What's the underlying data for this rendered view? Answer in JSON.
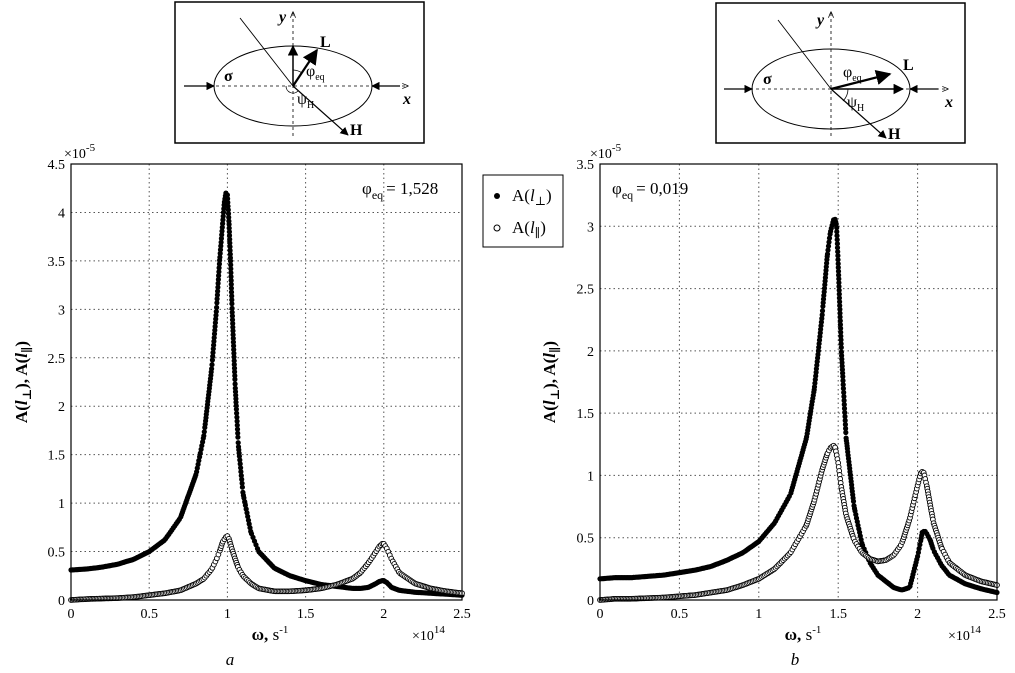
{
  "chart_data": [
    {
      "type": "scatter",
      "panel_label": "a",
      "annotation": "φeq = 1,528",
      "annotation_parts": {
        "phi": "φ",
        "sub": "eq",
        "value": "= 1,528"
      },
      "xlabel": "ω, s-1",
      "ylabel": "A(l⊥), A(l∥)",
      "x_multiplier": "×10^14",
      "y_multiplier": "×10^-5",
      "xlim": [
        0,
        2.5
      ],
      "ylim": [
        0,
        4.5
      ],
      "x_ticks": [
        "0",
        "0.5",
        "1",
        "1.5",
        "2",
        "2.5"
      ],
      "y_ticks": [
        "0",
        "0.5",
        "1",
        "1.5",
        "2",
        "2.5",
        "3",
        "3.5",
        "4",
        "4.5"
      ],
      "grid": true,
      "series": [
        {
          "name": "A(l⊥)",
          "marker": "filled-circle",
          "x": [
            0,
            0.1,
            0.2,
            0.3,
            0.4,
            0.5,
            0.6,
            0.7,
            0.8,
            0.85,
            0.9,
            0.93,
            0.95,
            0.97,
            0.98,
            0.99,
            1.0,
            1.01,
            1.02,
            1.03,
            1.05,
            1.07,
            1.1,
            1.15,
            1.2,
            1.3,
            1.4,
            1.5,
            1.6,
            1.7,
            1.8,
            1.85,
            1.9,
            1.95,
            1.97,
            1.99,
            2.0,
            2.02,
            2.05,
            2.1,
            2.2,
            2.3,
            2.4,
            2.5
          ],
          "y": [
            0.31,
            0.32,
            0.34,
            0.37,
            0.42,
            0.5,
            0.62,
            0.85,
            1.3,
            1.7,
            2.4,
            3.0,
            3.5,
            3.9,
            4.1,
            4.2,
            4.18,
            3.9,
            3.5,
            3.0,
            2.2,
            1.6,
            1.1,
            0.7,
            0.5,
            0.33,
            0.25,
            0.2,
            0.16,
            0.14,
            0.12,
            0.12,
            0.13,
            0.17,
            0.19,
            0.2,
            0.2,
            0.18,
            0.13,
            0.1,
            0.08,
            0.07,
            0.06,
            0.05
          ]
        },
        {
          "name": "A(l∥)",
          "marker": "open-circle",
          "x": [
            0,
            0.1,
            0.2,
            0.3,
            0.4,
            0.5,
            0.6,
            0.7,
            0.8,
            0.85,
            0.9,
            0.93,
            0.95,
            0.97,
            0.99,
            1.0,
            1.01,
            1.03,
            1.05,
            1.07,
            1.1,
            1.15,
            1.2,
            1.3,
            1.4,
            1.5,
            1.6,
            1.7,
            1.8,
            1.85,
            1.9,
            1.93,
            1.95,
            1.97,
            1.99,
            2.0,
            2.02,
            2.05,
            2.1,
            2.2,
            2.3,
            2.4,
            2.5
          ],
          "y": [
            0,
            0.01,
            0.015,
            0.02,
            0.03,
            0.05,
            0.07,
            0.1,
            0.17,
            0.22,
            0.32,
            0.42,
            0.5,
            0.6,
            0.65,
            0.66,
            0.63,
            0.52,
            0.42,
            0.33,
            0.25,
            0.17,
            0.12,
            0.09,
            0.09,
            0.1,
            0.12,
            0.16,
            0.22,
            0.28,
            0.38,
            0.45,
            0.5,
            0.55,
            0.58,
            0.58,
            0.53,
            0.42,
            0.28,
            0.17,
            0.12,
            0.09,
            0.07
          ]
        }
      ]
    },
    {
      "type": "scatter",
      "panel_label": "b",
      "annotation": "φeq = 0,019",
      "annotation_parts": {
        "phi": "φ",
        "sub": "eq",
        "value": "= 0,019"
      },
      "xlabel": "ω, s-1",
      "ylabel": "A(l⊥), A(l∥)",
      "x_multiplier": "×10^14",
      "y_multiplier": "×10^-5",
      "xlim": [
        0,
        2.5
      ],
      "ylim": [
        0,
        3.5
      ],
      "x_ticks": [
        "0",
        "0.5",
        "1",
        "1.5",
        "2",
        "2.5"
      ],
      "y_ticks": [
        "0",
        "0.5",
        "1",
        "1.5",
        "2",
        "2.5",
        "3",
        "3.5"
      ],
      "grid": true,
      "series": [
        {
          "name": "A(l⊥)",
          "marker": "filled-circle",
          "x": [
            0,
            0.1,
            0.2,
            0.3,
            0.4,
            0.5,
            0.6,
            0.7,
            0.8,
            0.9,
            1.0,
            1.1,
            1.2,
            1.3,
            1.35,
            1.4,
            1.43,
            1.45,
            1.47,
            1.48,
            1.49,
            1.5,
            1.52,
            1.55,
            1.6,
            1.65,
            1.7,
            1.75,
            1.8,
            1.85,
            1.9,
            1.95,
            2.0,
            2.02,
            2.03,
            2.05,
            2.08,
            2.1,
            2.15,
            2.2,
            2.3,
            2.4,
            2.5
          ],
          "y": [
            0.17,
            0.18,
            0.18,
            0.19,
            0.2,
            0.22,
            0.24,
            0.27,
            0.32,
            0.38,
            0.47,
            0.62,
            0.85,
            1.3,
            1.7,
            2.3,
            2.75,
            2.95,
            3.05,
            3.06,
            3.0,
            2.7,
            2.0,
            1.3,
            0.75,
            0.45,
            0.3,
            0.2,
            0.15,
            0.1,
            0.08,
            0.1,
            0.35,
            0.48,
            0.55,
            0.55,
            0.48,
            0.4,
            0.28,
            0.2,
            0.13,
            0.09,
            0.06
          ]
        },
        {
          "name": "A(l∥)",
          "marker": "open-circle",
          "x": [
            0,
            0.1,
            0.2,
            0.3,
            0.4,
            0.5,
            0.6,
            0.7,
            0.8,
            0.9,
            1.0,
            1.1,
            1.2,
            1.3,
            1.35,
            1.4,
            1.43,
            1.45,
            1.47,
            1.48,
            1.5,
            1.52,
            1.55,
            1.6,
            1.65,
            1.7,
            1.75,
            1.8,
            1.85,
            1.9,
            1.95,
            2.0,
            2.02,
            2.03,
            2.04,
            2.06,
            2.1,
            2.15,
            2.2,
            2.3,
            2.4,
            2.5
          ],
          "y": [
            0,
            0.01,
            0.01,
            0.015,
            0.02,
            0.03,
            0.04,
            0.06,
            0.08,
            0.12,
            0.17,
            0.25,
            0.38,
            0.6,
            0.8,
            1.05,
            1.17,
            1.22,
            1.24,
            1.23,
            1.1,
            0.9,
            0.68,
            0.48,
            0.38,
            0.33,
            0.31,
            0.32,
            0.36,
            0.45,
            0.65,
            0.92,
            1.02,
            1.03,
            1.02,
            0.9,
            0.62,
            0.42,
            0.3,
            0.2,
            0.15,
            0.12
          ]
        }
      ]
    }
  ],
  "legend": {
    "placement": "between-panels",
    "entries": [
      {
        "label": "A(l⊥)",
        "marker": "filled-circle"
      },
      {
        "label": "A(l∥)",
        "marker": "open-circle"
      }
    ]
  },
  "insets": [
    {
      "panel": "a",
      "labels": {
        "y": "y",
        "x": "x",
        "L": "L",
        "H": "H",
        "sigma": "σ",
        "phi": "φ",
        "phi_sub": "eq",
        "psi": "ψ",
        "psi_sub": "H"
      }
    },
    {
      "panel": "b",
      "labels": {
        "y": "y",
        "x": "x",
        "L": "L",
        "H": "H",
        "sigma": "σ",
        "phi": "φ",
        "phi_sub": "eq",
        "psi": "ψ",
        "psi_sub": "H"
      }
    }
  ]
}
